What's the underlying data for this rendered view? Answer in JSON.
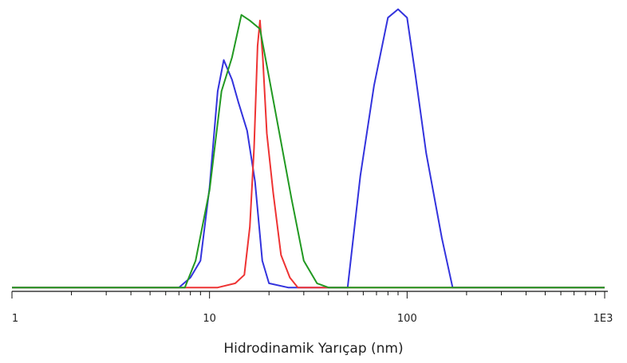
{
  "chart_data": {
    "type": "line",
    "xscale": "log",
    "xlim": [
      1,
      1000
    ],
    "ylim": [
      0,
      100
    ],
    "xlabel": "Hidrodinamik Yarıçap (nm)",
    "ylabel": "",
    "xticks": [
      {
        "value": 1,
        "label": "1"
      },
      {
        "value": 10,
        "label": "10"
      },
      {
        "value": 100,
        "label": "100"
      },
      {
        "value": 1000,
        "label": "1E3"
      }
    ],
    "grid": false,
    "legend": "none",
    "series": [
      {
        "color": "#3333dd",
        "points": [
          [
            1,
            0.5
          ],
          [
            7,
            0.5
          ],
          [
            8,
            4
          ],
          [
            9,
            10
          ],
          [
            10,
            36
          ],
          [
            11,
            70
          ],
          [
            11.8,
            81
          ],
          [
            13,
            74
          ],
          [
            14,
            66
          ],
          [
            15.5,
            56
          ],
          [
            17,
            38
          ],
          [
            18.5,
            10
          ],
          [
            20,
            2
          ],
          [
            25,
            0.5
          ],
          [
            50,
            0.5
          ],
          [
            58,
            40
          ],
          [
            68,
            72
          ],
          [
            80,
            96
          ],
          [
            90,
            99
          ],
          [
            100,
            96
          ],
          [
            110,
            76
          ],
          [
            125,
            48
          ],
          [
            150,
            18
          ],
          [
            170,
            0.5
          ],
          [
            1000,
            0.5
          ]
        ]
      },
      {
        "color": "#ee3333",
        "points": [
          [
            1,
            0.5
          ],
          [
            11,
            0.5
          ],
          [
            13.5,
            2
          ],
          [
            15,
            5
          ],
          [
            16,
            22
          ],
          [
            16.8,
            50
          ],
          [
            17.5,
            86
          ],
          [
            18,
            95
          ],
          [
            18.6,
            82
          ],
          [
            19.5,
            55
          ],
          [
            21,
            34
          ],
          [
            23,
            12
          ],
          [
            25.5,
            4
          ],
          [
            28,
            0.5
          ],
          [
            1000,
            0.5
          ]
        ]
      },
      {
        "color": "#229922",
        "points": [
          [
            1,
            0.5
          ],
          [
            7.5,
            0.5
          ],
          [
            8.5,
            10
          ],
          [
            10,
            35
          ],
          [
            11.5,
            70
          ],
          [
            13,
            82
          ],
          [
            14.5,
            97
          ],
          [
            16,
            95
          ],
          [
            18,
            92
          ],
          [
            20,
            75
          ],
          [
            23,
            52
          ],
          [
            26,
            32
          ],
          [
            30,
            10
          ],
          [
            35,
            2
          ],
          [
            40,
            0.5
          ],
          [
            1000,
            0.5
          ]
        ]
      }
    ]
  }
}
